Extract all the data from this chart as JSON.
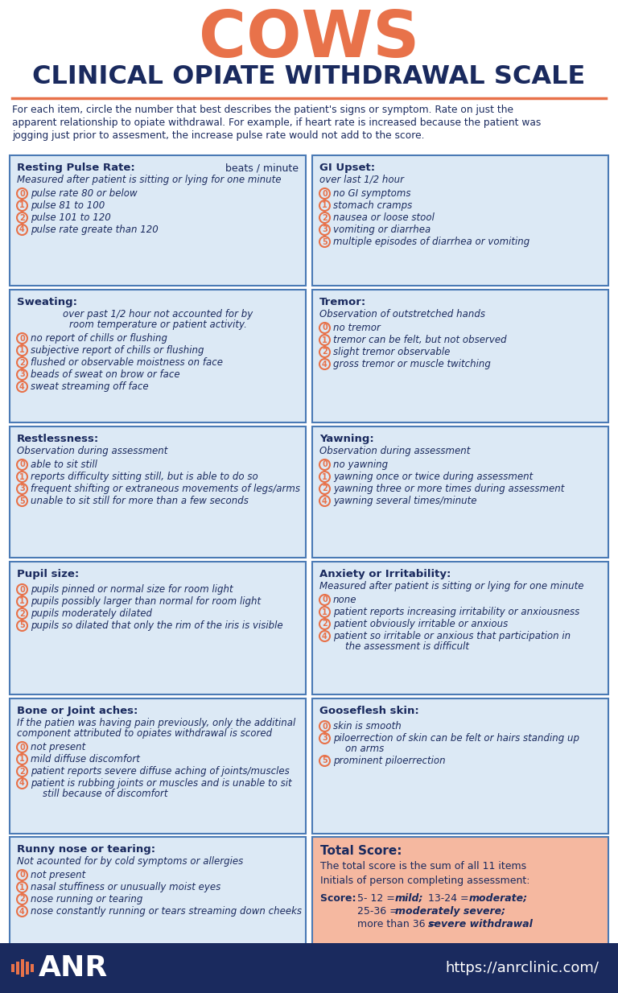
{
  "title_cows": "COWS",
  "title_sub": "CLINICAL OPIATE WITHDRAWAL SCALE",
  "title_cows_color": "#E8724A",
  "title_sub_color": "#1a2a5e",
  "intro_text": "For each item, circle the number that best describes the patient's signs or symptom. Rate on just the\napparent relationship to opiate withdrawal. For example, if heart rate is increased because the patient was\njogging just prior to assesment, the increase pulse rate would not add to the score.",
  "bg_color": "#ffffff",
  "cell_bg": "#dce9f5",
  "cell_border": "#4a7ab5",
  "header_color": "#1a2a5e",
  "item_text_color": "#1a2a5e",
  "circle_color": "#E8724A",
  "footer_bg": "#1a2a5e",
  "footer_text_color": "#ffffff",
  "total_bg": "#f5b8a0",
  "divider_color": "#E8724A",
  "cells": [
    {
      "title": "Resting Pulse Rate:",
      "title_extra": "beats / minute",
      "subtitle": "Measured after patient is sitting or lying for one minute",
      "items": [
        [
          "0",
          "pulse rate 80 or below"
        ],
        [
          "1",
          "pulse 81 to 100"
        ],
        [
          "2",
          "pulse 101 to 120"
        ],
        [
          "4",
          "pulse rate greate than 120"
        ]
      ]
    },
    {
      "title": "GI Upset:",
      "title_extra": "",
      "subtitle": "over last 1/2 hour",
      "items": [
        [
          "0",
          "no GI symptoms"
        ],
        [
          "1",
          "stomach cramps"
        ],
        [
          "2",
          "nausea or loose stool"
        ],
        [
          "3",
          "vomiting or diarrhea"
        ],
        [
          "5",
          "multiple episodes of diarrhea or vomiting"
        ]
      ]
    },
    {
      "title": "Sweating:",
      "title_extra": " over past 1/2 hour not accounted for by\n       room temperature or patient activity.",
      "subtitle": "",
      "items": [
        [
          "0",
          "no report of chills or flushing"
        ],
        [
          "1",
          "subjective report of chills or flushing"
        ],
        [
          "2",
          "flushed or observable moistness on face"
        ],
        [
          "3",
          "beads of sweat on brow or face"
        ],
        [
          "4",
          "sweat streaming off face"
        ]
      ]
    },
    {
      "title": "Tremor:",
      "title_extra": "",
      "subtitle": "Observation of outstretched hands",
      "items": [
        [
          "0",
          "no tremor"
        ],
        [
          "1",
          "tremor can be felt, but not observed"
        ],
        [
          "2",
          "slight tremor observable"
        ],
        [
          "4",
          "gross tremor or muscle twitching"
        ]
      ]
    },
    {
      "title": "Restlessness:",
      "title_extra": "",
      "subtitle": "Observation during assessment",
      "items": [
        [
          "0",
          "able to sit still"
        ],
        [
          "1",
          "reports difficulty sitting still, but is able to do so"
        ],
        [
          "3",
          "frequent shifting or extraneous movements of legs/arms"
        ],
        [
          "5",
          "unable to sit still for more than a few seconds"
        ]
      ]
    },
    {
      "title": "Yawning:",
      "title_extra": "",
      "subtitle": "Observation during assessment",
      "items": [
        [
          "0",
          "no yawning"
        ],
        [
          "1",
          "yawning once or twice during assessment"
        ],
        [
          "2",
          "yawning three or more times during assessment"
        ],
        [
          "4",
          "yawning several times/minute"
        ]
      ]
    },
    {
      "title": "Pupil size:",
      "title_extra": "",
      "subtitle": "",
      "items": [
        [
          "0",
          "pupils pinned or normal size for room light"
        ],
        [
          "1",
          "pupils possibly larger than normal for room light"
        ],
        [
          "2",
          "pupils moderately dilated"
        ],
        [
          "5",
          "pupils so dilated that only the rim of the iris is visible"
        ]
      ]
    },
    {
      "title": "Anxiety or Irritability:",
      "title_extra": "",
      "subtitle": "Measured after patient is sitting or lying for one minute",
      "items": [
        [
          "0",
          "none"
        ],
        [
          "1",
          "patient reports increasing irritability or anxiousness"
        ],
        [
          "2",
          "patient obviously irritable or anxious"
        ],
        [
          "4",
          "patient so irritable or anxious that participation in\n    the assessment is difficult"
        ]
      ]
    },
    {
      "title": "Bone or Joint aches:",
      "title_extra": "",
      "subtitle": "If the patien was having pain previously, only the additinal\ncomponent attributed to opiates withdrawal is scored",
      "items": [
        [
          "0",
          "not present"
        ],
        [
          "1",
          "mild diffuse discomfort"
        ],
        [
          "2",
          "patient reports severe diffuse aching of joints/muscles"
        ],
        [
          "4",
          "patient is rubbing joints or muscles and is unable to sit\n    still because of discomfort"
        ]
      ]
    },
    {
      "title": "Gooseflesh skin:",
      "title_extra": "",
      "subtitle": "",
      "items": [
        [
          "0",
          "skin is smooth"
        ],
        [
          "3",
          "piloerrection of skin can be felt or hairs standing up\n    on arms"
        ],
        [
          "5",
          "prominent piloerrection"
        ]
      ]
    },
    {
      "title": "Runny nose or tearing:",
      "title_extra": "",
      "subtitle": "Not acounted for by cold symptoms or allergies",
      "items": [
        [
          "0",
          "not present"
        ],
        [
          "1",
          "nasal stuffiness or unusually moist eyes"
        ],
        [
          "2",
          "nose running or tearing"
        ],
        [
          "4",
          "nose constantly running or tears streaming down cheeks"
        ]
      ]
    }
  ],
  "footer_logo": "ANR",
  "footer_url": "https://anrclinic.com/"
}
